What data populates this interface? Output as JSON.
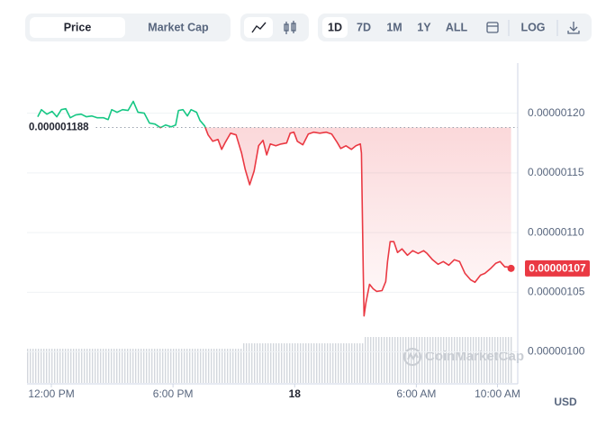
{
  "toolbar": {
    "view_tabs": [
      "Price",
      "Market Cap"
    ],
    "ranges": [
      "1D",
      "7D",
      "1M",
      "1Y",
      "ALL"
    ],
    "scale_button": "LOG"
  },
  "chart_data": {
    "type": "line",
    "x": [
      -0.67,
      -0.49,
      -0.22,
      0.04,
      0.27,
      0.49,
      0.71,
      0.93,
      1.2,
      1.47,
      1.73,
      2.0,
      2.27,
      2.58,
      2.8,
      2.98,
      3.24,
      3.51,
      3.78,
      4.04,
      4.27,
      4.58,
      4.84,
      5.11,
      5.38,
      5.64,
      5.91,
      6.13,
      6.27,
      6.49,
      6.71,
      6.89,
      7.16,
      7.33,
      7.56,
      7.73,
      7.96,
      8.22,
      8.4,
      8.58,
      8.84,
      9.11,
      9.38,
      9.56,
      9.78,
      10.0,
      10.22,
      10.44,
      10.62,
      10.8,
      11.07,
      11.33,
      11.6,
      11.78,
      11.96,
      12.13,
      12.4,
      12.67,
      12.93,
      13.24,
      13.56,
      13.82,
      14.09,
      14.27,
      14.53,
      14.8,
      15.02,
      15.24,
      15.29,
      15.38,
      15.42,
      15.51,
      15.69,
      15.87,
      16.04,
      16.31,
      16.49,
      16.58,
      16.71,
      16.89,
      17.07,
      17.29,
      17.56,
      17.82,
      18.09,
      18.36,
      18.53,
      18.8,
      19.07,
      19.33,
      19.6,
      19.87,
      20.13,
      20.4,
      20.67,
      20.89,
      21.16,
      21.38,
      21.64,
      21.91,
      22.13,
      22.36,
      22.49,
      22.67
    ],
    "series": [
      {
        "values": [
          1.197e-06,
          1.203e-06,
          1.1992e-06,
          1.2015e-06,
          1.197e-06,
          1.203e-06,
          1.2038e-06,
          1.1962e-06,
          1.1985e-06,
          1.1992e-06,
          1.197e-06,
          1.1977e-06,
          1.1962e-06,
          1.1962e-06,
          1.1947e-06,
          1.203e-06,
          1.2008e-06,
          1.203e-06,
          1.2023e-06,
          1.2099e-06,
          1.2008e-06,
          1.2e-06,
          1.1917e-06,
          1.1909e-06,
          1.1879e-06,
          1.1901e-06,
          1.1886e-06,
          1.1901e-06,
          1.2023e-06,
          1.203e-06,
          1.1977e-06,
          1.203e-06,
          1.2008e-06,
          1.1939e-06,
          1.1894e-06,
          1.1818e-06,
          1.1765e-06,
          1.178e-06,
          1.1697e-06,
          1.1757e-06,
          1.1833e-06,
          1.1818e-06,
          1.1666e-06,
          1.153e-06,
          1.1401e-06,
          1.1515e-06,
          1.1727e-06,
          1.1773e-06,
          1.1651e-06,
          1.1742e-06,
          1.1727e-06,
          1.1742e-06,
          1.175e-06,
          1.1833e-06,
          1.1841e-06,
          1.1765e-06,
          1.1735e-06,
          1.1826e-06,
          1.1841e-06,
          1.1833e-06,
          1.1841e-06,
          1.1826e-06,
          1.1757e-06,
          1.1704e-06,
          1.1727e-06,
          1.1697e-06,
          1.1727e-06,
          1.1742e-06,
          1.1666e-06,
          1.0681e-06,
          1.0302e-06,
          1.0408e-06,
          1.0567e-06,
          1.0529e-06,
          1.0507e-06,
          1.0514e-06,
          1.059e-06,
          1.0757e-06,
          1.0924e-06,
          1.0924e-06,
          1.0833e-06,
          1.0863e-06,
          1.081e-06,
          1.0848e-06,
          1.0825e-06,
          1.0848e-06,
          1.0825e-06,
          1.0772e-06,
          1.0734e-06,
          1.0757e-06,
          1.0727e-06,
          1.0772e-06,
          1.0757e-06,
          1.0658e-06,
          1.0605e-06,
          1.0583e-06,
          1.0643e-06,
          1.0658e-06,
          1.0696e-06,
          1.0742e-06,
          1.0757e-06,
          1.0712e-06,
          1.0712e-06,
          1.07e-06
        ]
      }
    ],
    "above_color": "#16c784",
    "below_color": "#ea3943",
    "reference": {
      "value": 1.188e-06,
      "label": "0.000001188"
    },
    "current_price": {
      "value": 1.07e-06,
      "label": "0.00000107"
    },
    "xlim": [
      -1.2,
      23.0
    ],
    "xticks": [
      {
        "value": 0,
        "label": "12:00 PM"
      },
      {
        "value": 6,
        "label": "6:00 PM"
      },
      {
        "value": 12,
        "label": "18"
      },
      {
        "value": 18,
        "label": "6:00 AM"
      },
      {
        "value": 22,
        "label": "10:00 AM"
      }
    ],
    "ylim": [
      9.74e-07,
      1.242e-06
    ],
    "yticks": [
      {
        "value": 1e-06,
        "label": "0.00000100"
      },
      {
        "value": 1.05e-06,
        "label": "0.00000105"
      },
      {
        "value": 1.1e-06,
        "label": "0.00000110"
      },
      {
        "value": 1.15e-06,
        "label": "0.00000115"
      },
      {
        "value": 1.2e-06,
        "label": "0.00000120"
      }
    ],
    "grid": true,
    "currency_label": "USD",
    "watermark": "CoinMarketCap"
  }
}
